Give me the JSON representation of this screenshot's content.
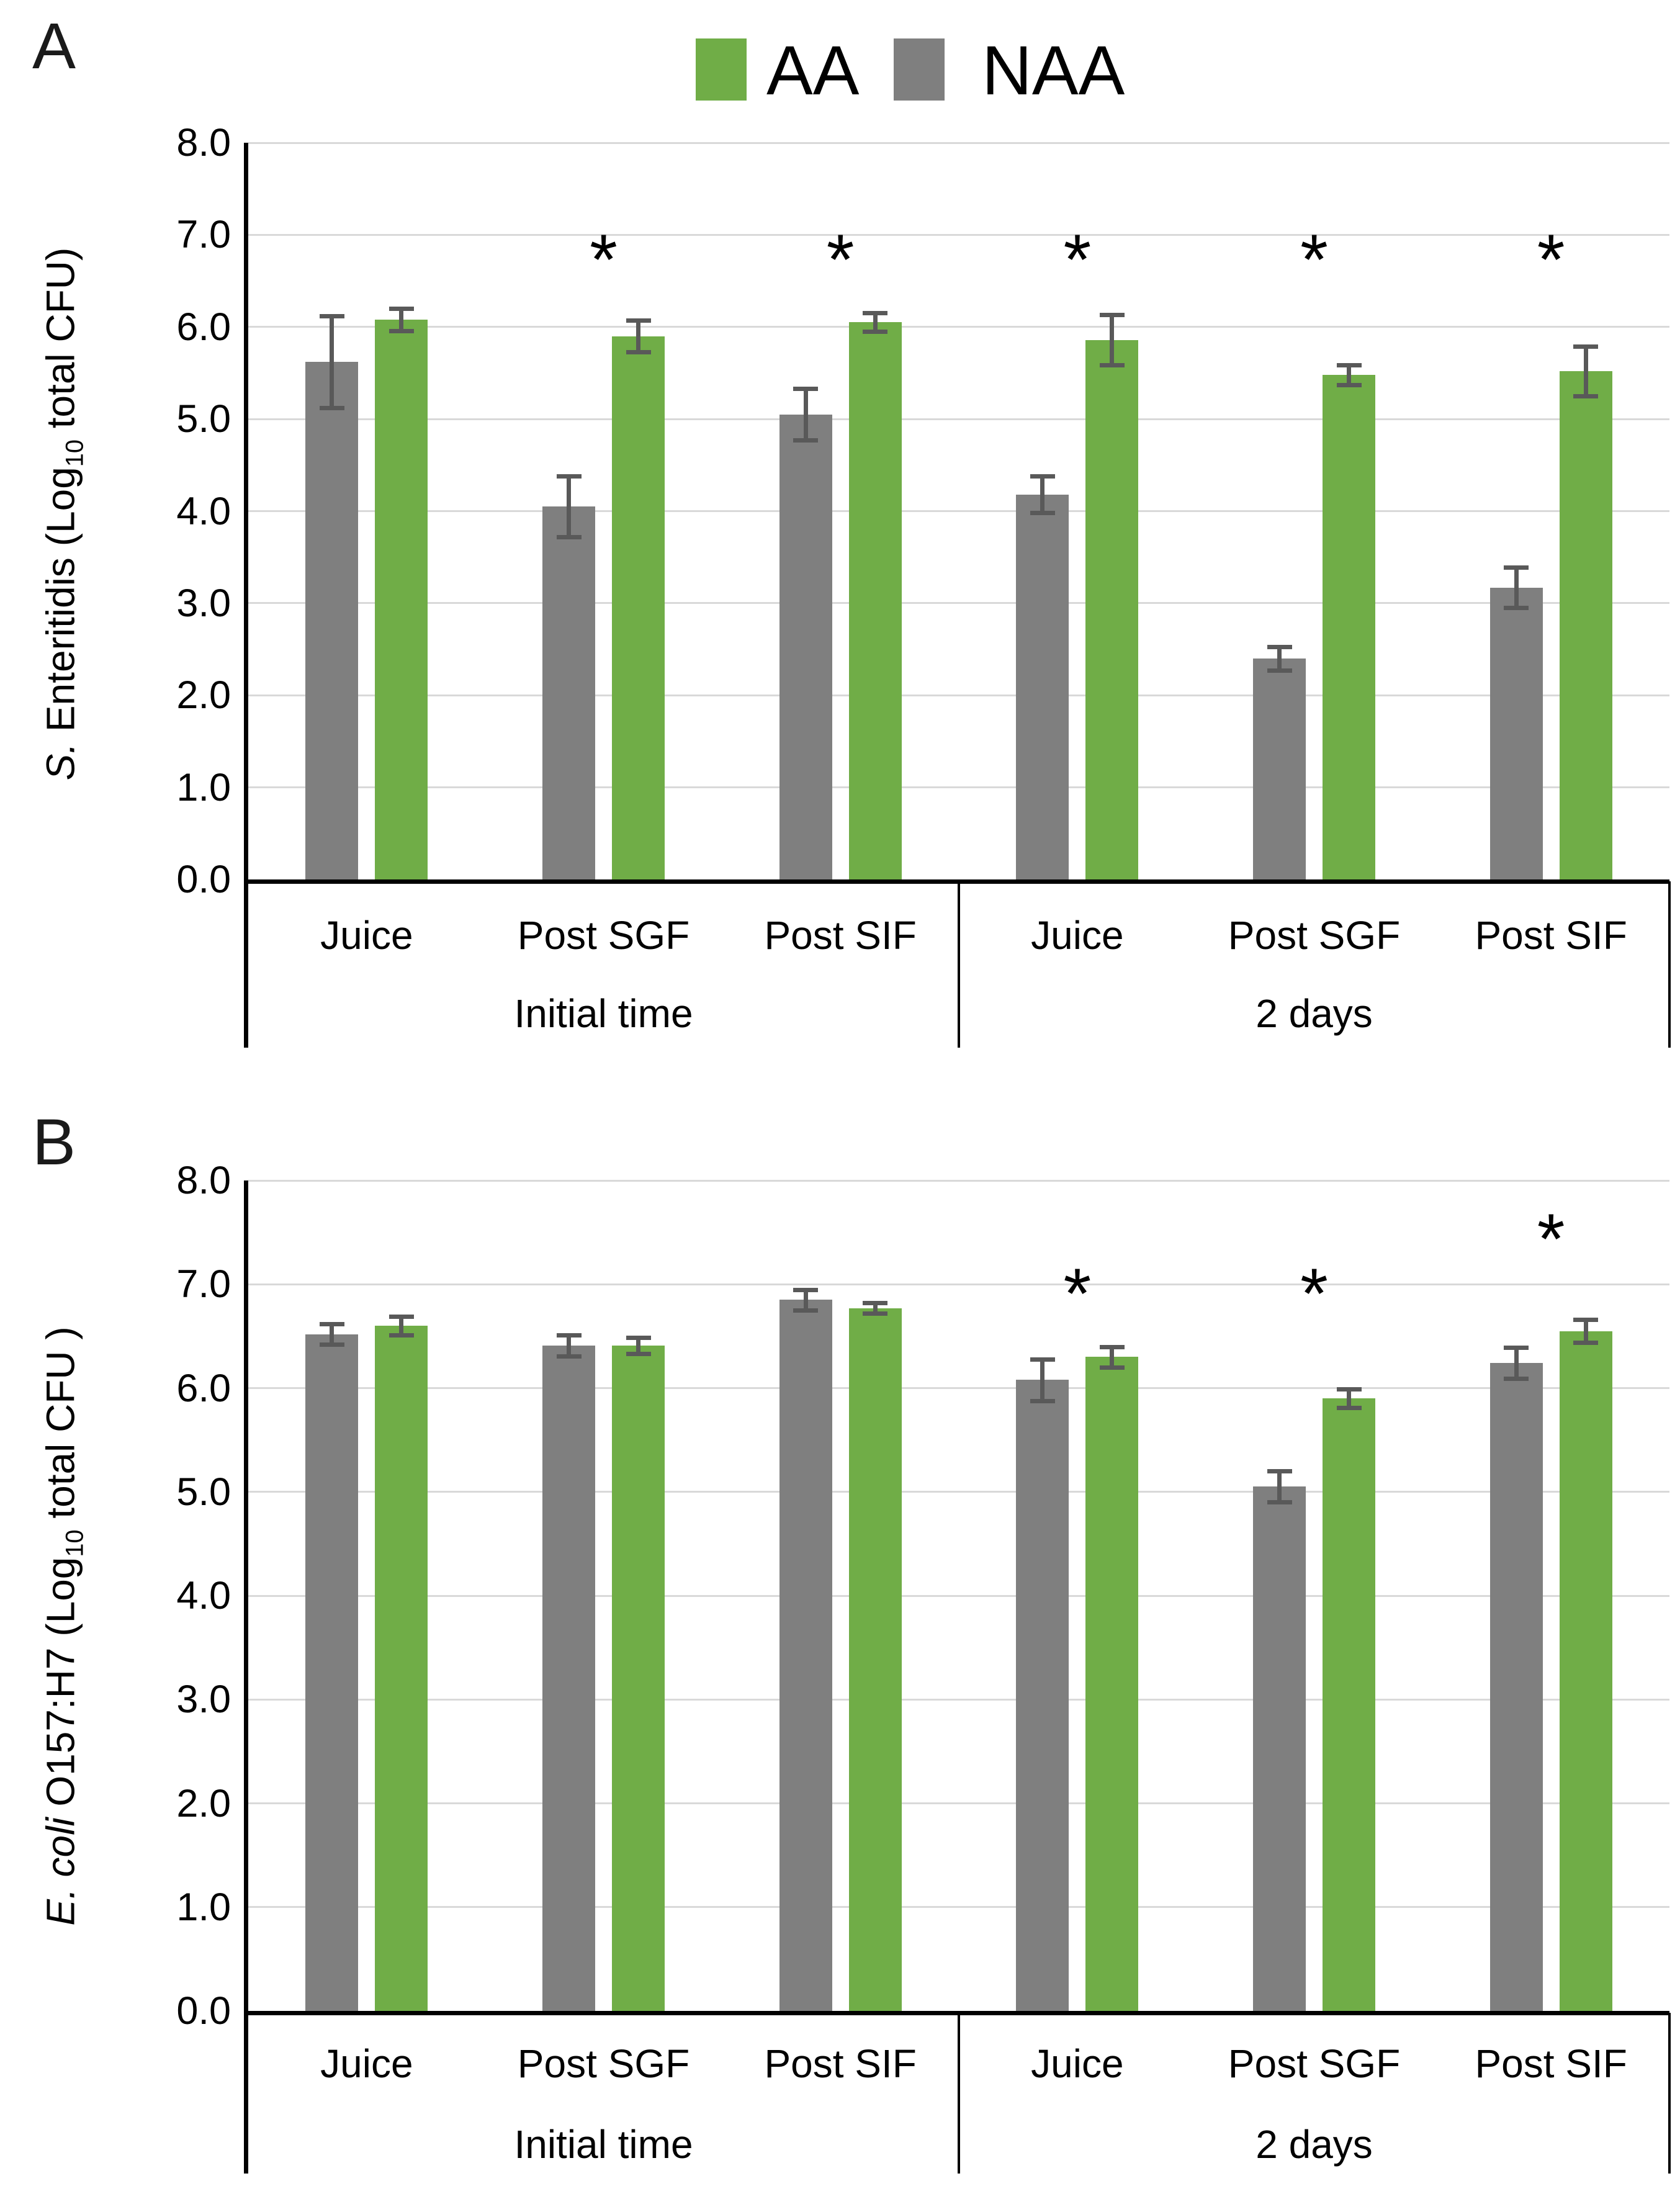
{
  "figure": {
    "colors": {
      "bar_aa": "#70AD47",
      "bar_naa": "#7F7F7F",
      "error_bar": "#595959",
      "gridline": "#D9D9D9",
      "axis": "#000000"
    }
  },
  "legend": {
    "aa_label": "AA",
    "naa_label": "NAA",
    "aa_color": "#70AD47",
    "naa_color": "#7F7F7F"
  },
  "panels": {
    "a": {
      "label": "A",
      "ylabel_italic": "S.",
      "ylabel_mid": " Enteritidis (Log",
      "ylabel_sub": "10",
      "ylabel_end": " total CFU)"
    },
    "b": {
      "label": "B",
      "ylabel_italic": "E. coli",
      "ylabel_mid": " O157:H7 (Log",
      "ylabel_sub": "10",
      "ylabel_end": " total CFU )"
    }
  },
  "chart_data": [
    {
      "type": "bar",
      "panel": "A",
      "ylabel": "S. Enteritidis (Log10 total CFU)",
      "ylim": [
        0,
        8
      ],
      "ytick_labels": [
        "8.0",
        "7.0",
        "6.0",
        "5.0",
        "4.0",
        "3.0",
        "2.0",
        "1.0",
        "0.0"
      ],
      "grid": true,
      "legend_position": "top",
      "categories": [
        "Juice",
        "Post SGF",
        "Post SIF",
        "Juice",
        "Post SGF",
        "Post SIF"
      ],
      "group_labels": [
        "Initial time",
        "2 days"
      ],
      "series": [
        {
          "name": "NAA",
          "color": "#7F7F7F",
          "values": [
            5.62,
            4.05,
            5.05,
            4.18,
            2.4,
            3.17
          ],
          "errors": [
            0.5,
            0.33,
            0.28,
            0.2,
            0.13,
            0.22
          ]
        },
        {
          "name": "AA",
          "color": "#70AD47",
          "values": [
            6.08,
            5.9,
            6.05,
            5.86,
            5.48,
            5.52
          ],
          "errors": [
            0.12,
            0.17,
            0.1,
            0.27,
            0.11,
            0.27
          ]
        }
      ],
      "significance": [
        {
          "pair_index": 1,
          "label": "*",
          "bar_y": 6.38
        },
        {
          "pair_index": 2,
          "label": "*",
          "bar_y": 6.38
        },
        {
          "pair_index": 3,
          "label": "*",
          "bar_y": 6.38
        },
        {
          "pair_index": 4,
          "label": "*",
          "bar_y": 6.38
        },
        {
          "pair_index": 5,
          "label": "*",
          "bar_y": 6.38
        }
      ]
    },
    {
      "type": "bar",
      "panel": "B",
      "ylabel": "E. coli O157:H7 (Log10 total CFU )",
      "ylim": [
        0,
        8
      ],
      "ytick_labels": [
        "8.0",
        "7.0",
        "6.0",
        "5.0",
        "4.0",
        "3.0",
        "2.0",
        "1.0",
        "0.0"
      ],
      "grid": true,
      "legend_position": "none",
      "categories": [
        "Juice",
        "Post SGF",
        "Post SIF",
        "Juice",
        "Post SGF",
        "Post SIF"
      ],
      "group_labels": [
        "Initial time",
        "2 days"
      ],
      "series": [
        {
          "name": "NAA",
          "color": "#7F7F7F",
          "values": [
            6.52,
            6.41,
            6.85,
            6.08,
            5.05,
            6.24
          ],
          "errors": [
            0.1,
            0.1,
            0.1,
            0.2,
            0.15,
            0.15
          ]
        },
        {
          "name": "AA",
          "color": "#70AD47",
          "values": [
            6.6,
            6.41,
            6.77,
            6.3,
            5.9,
            6.55
          ],
          "errors": [
            0.09,
            0.08,
            0.05,
            0.1,
            0.09,
            0.11
          ]
        }
      ],
      "significance": [
        {
          "pair_index": 3,
          "label": "*",
          "bar_y": 6.6
        },
        {
          "pair_index": 4,
          "label": "*",
          "bar_y": 6.6
        },
        {
          "pair_index": 5,
          "label": "*",
          "bar_y": 7.13
        }
      ]
    }
  ]
}
